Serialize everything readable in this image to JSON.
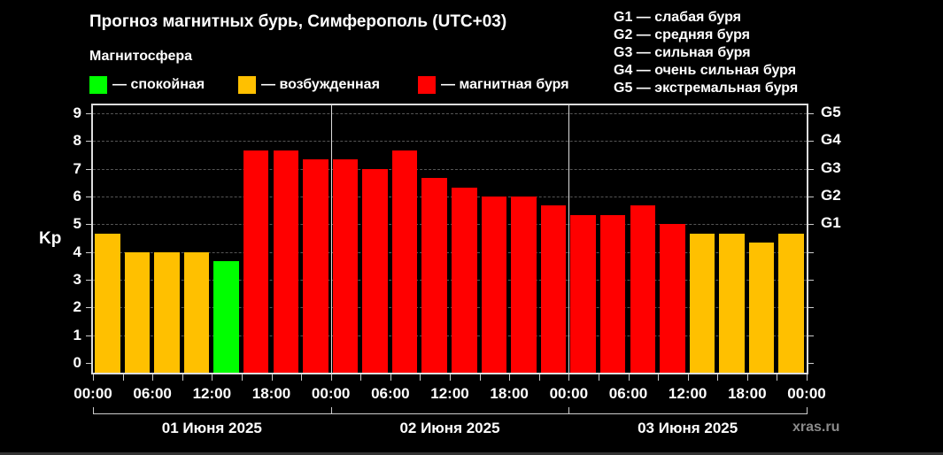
{
  "header": {
    "title": "Прогноз магнитных бурь, Симферополь (UTC+03)",
    "subtitle": "Магнитосфера"
  },
  "legend": [
    {
      "label": "— спокойная",
      "color": "#00ff00"
    },
    {
      "label": "— возбужденная",
      "color": "#ffc000"
    },
    {
      "label": "— магнитная буря",
      "color": "#ff0000"
    }
  ],
  "g_legend": [
    "G1 — слабая буря",
    "G2 — средняя буря",
    "G3 — сильная буря",
    "G4 — очень сильная буря",
    "G5 — экстремальная буря"
  ],
  "watermark": "xras.ru",
  "chart_data": {
    "type": "bar",
    "title": "Прогноз магнитных бурь, Симферополь (UTC+03)",
    "xlabel": "",
    "ylabel": "Kp",
    "ylim": [
      0,
      9
    ],
    "yticks": [
      "0",
      "1",
      "2",
      "3",
      "4",
      "5",
      "6",
      "7",
      "8",
      "9"
    ],
    "y2ticks": [
      {
        "value": 5,
        "label": "G1"
      },
      {
        "value": 6,
        "label": "G2"
      },
      {
        "value": 7,
        "label": "G3"
      },
      {
        "value": 8,
        "label": "G4"
      },
      {
        "value": 9,
        "label": "G5"
      }
    ],
    "grid": true,
    "xtick_labels": [
      "00:00",
      "06:00",
      "12:00",
      "18:00",
      "00:00",
      "06:00",
      "12:00",
      "18:00",
      "00:00",
      "06:00",
      "12:00",
      "18:00",
      "00:00"
    ],
    "days": [
      "01 Июня 2025",
      "02 Июня 2025",
      "03 Июня 2025"
    ],
    "categories": [
      "01 00-03",
      "01 03-06",
      "01 06-09",
      "01 09-12",
      "01 12-15",
      "01 15-18",
      "01 18-21",
      "01 21-24",
      "02 00-03",
      "02 03-06",
      "02 06-09",
      "02 09-12",
      "02 12-15",
      "02 15-18",
      "02 18-21",
      "02 21-24",
      "03 00-03",
      "03 03-06",
      "03 06-09",
      "03 09-12",
      "03 12-15",
      "03 15-18",
      "03 18-21",
      "03 21-24"
    ],
    "values": [
      4.67,
      4.0,
      4.0,
      4.0,
      3.67,
      7.67,
      7.67,
      7.33,
      7.33,
      7.0,
      7.67,
      6.67,
      6.33,
      6.0,
      6.0,
      5.67,
      5.33,
      5.33,
      5.67,
      5.0,
      4.67,
      4.67,
      4.33,
      4.67
    ],
    "colors": [
      "#ffc000",
      "#ffc000",
      "#ffc000",
      "#ffc000",
      "#00ff00",
      "#ff0000",
      "#ff0000",
      "#ff0000",
      "#ff0000",
      "#ff0000",
      "#ff0000",
      "#ff0000",
      "#ff0000",
      "#ff0000",
      "#ff0000",
      "#ff0000",
      "#ff0000",
      "#ff0000",
      "#ff0000",
      "#ff0000",
      "#ffc000",
      "#ffc000",
      "#ffc000",
      "#ffc000"
    ]
  }
}
